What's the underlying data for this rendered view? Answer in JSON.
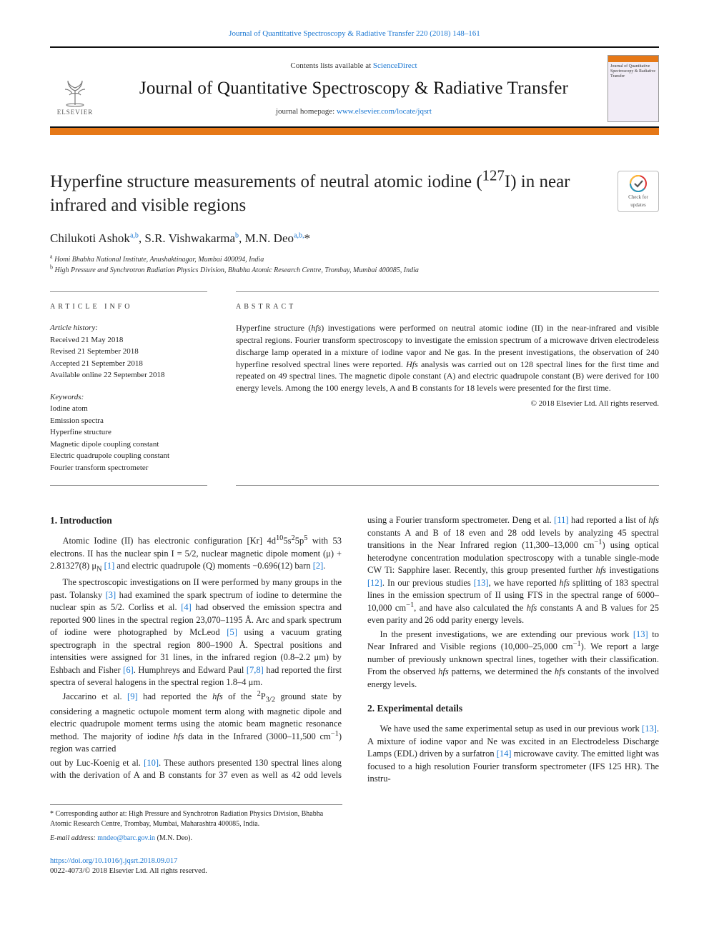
{
  "header": {
    "ref_line": "Journal of Quantitative Spectroscopy & Radiative Transfer 220 (2018) 148–161",
    "contents": "Contents lists available at ",
    "contents_link": "ScienceDirect",
    "journal_title": "Journal of Quantitative Spectroscopy & Radiative Transfer",
    "homepage_label": "journal homepage: ",
    "homepage_url": "www.elsevier.com/locate/jqsrt",
    "publisher": "ELSEVIER",
    "cover_text": "Journal of Quantitative Spectroscopy & Radiative Transfer",
    "accent_hex": "#e67817"
  },
  "badge": {
    "l1": "Check for",
    "l2": "updates"
  },
  "title_html": "Hyperfine structure measurements of neutral atomic iodine (<sup>127</sup>I) in near infrared and visible regions",
  "authors_html": "Chilukoti Ashok<sup>a,b</sup>, S.R. Vishwakarma<sup>b</sup>, M.N. Deo<sup>a,b,</sup>*",
  "affiliations": {
    "a": "Homi Bhabha National Institute, Anushaktinagar, Mumbai 400094, India",
    "b": "High Pressure and Synchrotron Radiation Physics Division, Bhabha Atomic Research Centre, Trombay, Mumbai 400085, India"
  },
  "info": {
    "head": "ARTICLE INFO",
    "history_label": "Article history:",
    "history": [
      "Received 21 May 2018",
      "Revised 21 September 2018",
      "Accepted 21 September 2018",
      "Available online 22 September 2018"
    ],
    "keywords_label": "Keywords:",
    "keywords": [
      "Iodine atom",
      "Emission spectra",
      "Hyperfine structure",
      "Magnetic dipole coupling constant",
      "Electric quadrupole coupling constant",
      "Fourier transform spectrometer"
    ]
  },
  "abstract": {
    "head": "ABSTRACT",
    "text_html": "Hyperfine structure (<i>hfs</i>) investigations were performed on neutral atomic iodine (II) in the near-infrared and visible spectral regions. Fourier transform spectroscopy to investigate the emission spectrum of a microwave driven electrodeless discharge lamp operated in a mixture of iodine vapor and Ne gas. In the present investigations, the observation of 240 hyperfine resolved spectral lines were reported. <i>Hfs</i> analysis was carried out on 128 spectral lines for the first time and repeated on 49 spectral lines. The magnetic dipole constant (A) and electric quadrupole constant (B) were derived for 100 energy levels. Among the 100 energy levels, A and B constants for 18 levels were presented for the first time.",
    "copyright": "© 2018 Elsevier Ltd. All rights reserved."
  },
  "sections": {
    "s1_title": "1. Introduction",
    "s1_p1_html": "Atomic Iodine (II) has electronic configuration [Kr] 4d<sup>10</sup>5s<sup>2</sup>5p<sup>5</sup> with 53 electrons. II has the nuclear spin I = 5/2, nuclear magnetic dipole moment (μ) + 2.81327(8) μ<sub>N</sub> <span class=\"ref\">[1]</span> and electric quadrupole (Q) moments −0.696(12) barn <span class=\"ref\">[2]</span>.",
    "s1_p2_html": "The spectroscopic investigations on II were performed by many groups in the past. Tolansky <span class=\"ref\">[3]</span> had examined the spark spectrum of iodine to determine the nuclear spin as 5/2. Corliss et al. <span class=\"ref\">[4]</span> had observed the emission spectra and reported 900 lines in the spectral region 23,070–1195 Å. Arc and spark spectrum of iodine were photographed by McLeod <span class=\"ref\">[5]</span> using a vacuum grating spectrograph in the spectral region 800–1900 Å. Spectral positions and intensities were assigned for 31 lines, in the infrared region (0.8–2.2 μm) by Eshbach and Fisher <span class=\"ref\">[6]</span>. Humphreys and Edward Paul <span class=\"ref\">[7,8]</span> had reported the first spectra of several halogens in the spectral region 1.8–4 μm.",
    "s1_p3_html": "Jaccarino et al. <span class=\"ref\">[9]</span> had reported the <i>hfs</i> of the <sup>2</sup>P<sub>3/2</sub> ground state by considering a magnetic octupole moment term along with magnetic dipole and electric quadrupole moment terms using the atomic beam magnetic resonance method. The majority of iodine <i>hfs</i> data in the Infrared (3000–11,500 cm<sup>−1</sup>) region was carried",
    "s1_p4_html": "out by Luc-Koenig et al. <span class=\"ref\">[10]</span>. These authors presented 130 spectral lines along with the derivation of A and B constants for 37 even as well as 42 odd levels using a Fourier transform spectrometer. Deng et al. <span class=\"ref\">[11]</span> had reported a list of <i>hfs</i> constants A and B of 18 even and 28 odd levels by analyzing 45 spectral transitions in the Near Infrared region (11,300–13,000 cm<sup>−1</sup>) using optical heterodyne concentration modulation spectroscopy with a tunable single-mode CW Ti: Sapphire laser. Recently, this group presented further <i>hfs</i> investigations <span class=\"ref\">[12]</span>. In our previous studies <span class=\"ref\">[13]</span>, we have reported <i>hfs</i> splitting of 183 spectral lines in the emission spectrum of II using FTS in the spectral range of 6000–10,000 cm<sup>−1</sup>, and have also calculated the <i>hfs</i> constants A and B values for 25 even parity and 26 odd parity energy levels.",
    "s1_p5_html": "In the present investigations, we are extending our previous work <span class=\"ref\">[13]</span> to Near Infrared and Visible regions (10,000–25,000 cm<sup>−1</sup>). We report a large number of previously unknown spectral lines, together with their classification. From the observed <i>hfs</i> patterns, we determined the <i>hfs</i> constants of the involved energy levels.",
    "s2_title": "2. Experimental details",
    "s2_p1_html": "We have used the same experimental setup as used in our previous work <span class=\"ref\">[13]</span>. A mixture of iodine vapor and Ne was excited in an Electrodeless Discharge Lamps (EDL) driven by a surfatron <span class=\"ref\">[14]</span> microwave cavity. The emitted light was focused to a high resolution Fourier transform spectrometer (IFS 125 HR). The instru-"
  },
  "footnotes": {
    "corr": "* Corresponding author at: High Pressure and Synchrotron Radiation Physics Division, Bhabha Atomic Research Centre, Trombay, Mumbai, Maharashtra 400085, India.",
    "email_label": "E-mail address:",
    "email": "mndeo@barc.gov.in",
    "email_name": "(M.N. Deo)."
  },
  "footer": {
    "doi": "https://doi.org/10.1016/j.jqsrt.2018.09.017",
    "issn_line": "0022-4073/© 2018 Elsevier Ltd. All rights reserved."
  }
}
